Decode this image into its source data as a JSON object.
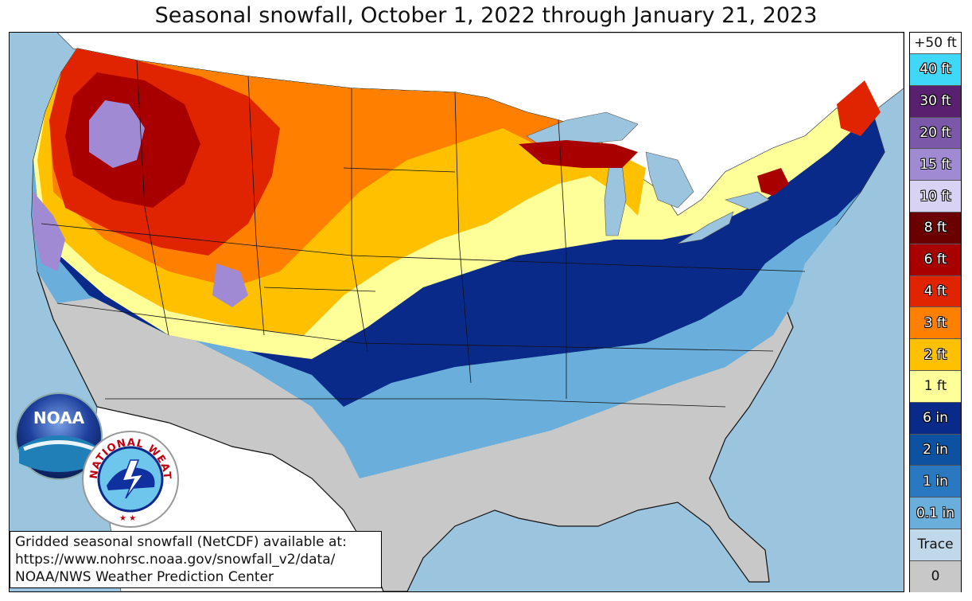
{
  "title": "Seasonal snowfall, October 1, 2022 through January 21, 2023",
  "legend": {
    "top_label": "+50 ft",
    "entries": [
      {
        "label": "40 ft",
        "color": "#40d8f8",
        "light": false
      },
      {
        "label": "30 ft",
        "color": "#5a2070",
        "light": false
      },
      {
        "label": "20 ft",
        "color": "#7b58a8",
        "light": false
      },
      {
        "label": "15 ft",
        "color": "#a08ad4",
        "light": false
      },
      {
        "label": "10 ft",
        "color": "#d8d2f4",
        "light": false
      },
      {
        "label": "8 ft",
        "color": "#6a0000",
        "light": false
      },
      {
        "label": "6 ft",
        "color": "#a80000",
        "light": false
      },
      {
        "label": "4 ft",
        "color": "#e02400",
        "light": false
      },
      {
        "label": "3 ft",
        "color": "#ff8000",
        "light": false
      },
      {
        "label": "2 ft",
        "color": "#ffc000",
        "light": false
      },
      {
        "label": "1 ft",
        "color": "#ffff9a",
        "light": true
      },
      {
        "label": "6 in",
        "color": "#0a2a8a",
        "light": false
      },
      {
        "label": "2 in",
        "color": "#0c52a0",
        "light": false
      },
      {
        "label": "1 in",
        "color": "#2a78c0",
        "light": false
      },
      {
        "label": "0.1 in",
        "color": "#6aaedc",
        "light": false
      },
      {
        "label": "Trace",
        "color": "#bfd8ea",
        "light": true
      },
      {
        "label": "0",
        "color": "#c8c8c8",
        "light": true
      }
    ]
  },
  "info": {
    "line1": "Gridded seasonal snowfall (NetCDF) available at:",
    "line2": "https://www.nohrsc.noaa.gov/snowfall_v2/data/",
    "line3": "NOAA/NWS Weather Prediction Center"
  },
  "logos": {
    "noaa_text": "NOAA",
    "nws_text": "NATIONAL WEATHER SERVICE"
  },
  "colors": {
    "water": "#9bc4de",
    "canada_mexico": "#ffffff",
    "no_snow": "#c8c8c8"
  }
}
